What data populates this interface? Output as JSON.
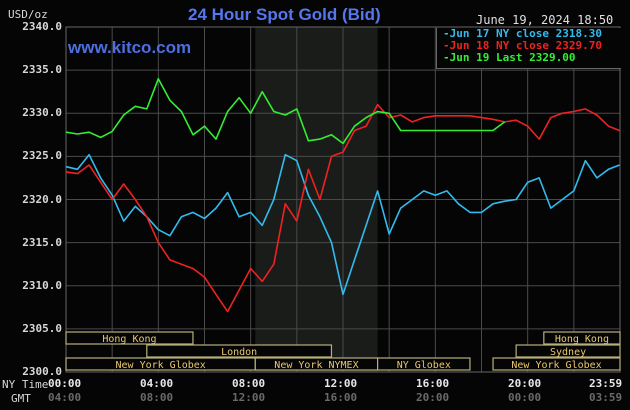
{
  "header": {
    "title": "24 Hour Spot Gold (Bid)",
    "unit": "USD/oz",
    "datetime": "June 19, 2024 18:50",
    "website": "www.kitco.com"
  },
  "legend": [
    {
      "label": "Jun 17 NY close 2318.30",
      "color": "#33bbee"
    },
    {
      "label": "Jun 18 NY close 2329.70",
      "color": "#ee2222"
    },
    {
      "label": "Jun 19 Last 2329.00",
      "color": "#33ee33"
    }
  ],
  "axis": {
    "y_ticks": [
      "2340.0",
      "2335.0",
      "2330.0",
      "2325.0",
      "2320.0",
      "2315.0",
      "2310.0",
      "2305.0",
      "2300.0"
    ],
    "x_label_ny": "NY Time",
    "x_label_gmt": "GMT",
    "x_ticks_ny": [
      "00:00",
      "04:00",
      "08:00",
      "12:00",
      "16:00",
      "20:00",
      "23:59"
    ],
    "x_ticks_gmt": [
      "04:00",
      "08:00",
      "12:00",
      "16:00",
      "20:00",
      "00:00",
      "03:59"
    ]
  },
  "sessions": [
    {
      "label": "Hong Kong",
      "row": 0,
      "start": 0,
      "end": 5.5
    },
    {
      "label": "London",
      "row": 1,
      "start": 3.5,
      "end": 11.5
    },
    {
      "label": "New York Globex",
      "row": 2,
      "start": 0,
      "end": 8.2
    },
    {
      "label": "New York NYMEX",
      "row": 2,
      "start": 8.2,
      "end": 13.5
    },
    {
      "label": "NY Globex",
      "row": 2,
      "start": 13.5,
      "end": 17.5
    },
    {
      "label": "Hong Kong",
      "row": 0,
      "start": 20.7,
      "end": 24
    },
    {
      "label": "Sydney",
      "row": 1,
      "start": 19.5,
      "end": 24
    },
    {
      "label": "New York Globex",
      "row": 2,
      "start": 18.5,
      "end": 24
    }
  ],
  "chart_data": {
    "type": "line",
    "title": "24 Hour Spot Gold (Bid)",
    "xlabel": "NY Time",
    "ylabel": "USD/oz",
    "ylim": [
      2300,
      2340
    ],
    "xlim": [
      0,
      24
    ],
    "grid": true,
    "legend_position": "top-right",
    "shaded_region_hours": [
      8.2,
      13.5
    ],
    "x_hours": [
      0,
      0.5,
      1,
      1.5,
      2,
      2.5,
      3,
      3.5,
      4,
      4.5,
      5,
      5.5,
      6,
      6.5,
      7,
      7.5,
      8,
      8.5,
      9,
      9.5,
      10,
      10.5,
      11,
      11.5,
      12,
      12.5,
      13,
      13.5,
      14,
      14.5,
      15,
      15.5,
      16,
      16.5,
      17,
      17.5,
      18,
      18.5,
      19,
      19.5,
      20,
      20.5,
      21,
      21.5,
      22,
      22.5,
      23,
      23.5,
      23.98
    ],
    "series": [
      {
        "name": "Jun 17 NY close 2318.30",
        "color": "#33bbee",
        "values": [
          2323.8,
          2323.5,
          2325.2,
          2322.5,
          2320.5,
          2317.5,
          2319.2,
          2318.0,
          2316.5,
          2315.8,
          2318.0,
          2318.5,
          2317.8,
          2319.0,
          2320.8,
          2318.0,
          2318.5,
          2317.0,
          2320.0,
          2325.2,
          2324.5,
          2320.5,
          2318.0,
          2315.0,
          2309.0,
          2313.0,
          2317.0,
          2321.0,
          2316.0,
          2319.0,
          2320.0,
          2321.0,
          2320.5,
          2321.0,
          2319.5,
          2318.5,
          2318.5,
          2319.5,
          2319.8,
          2320.0,
          2322.0,
          2322.5,
          2319.0,
          2320.0,
          2321.0,
          2324.5,
          2322.5,
          2323.5,
          2324.0
        ]
      },
      {
        "name": "Jun 18 NY close 2329.70",
        "color": "#ee2222",
        "values": [
          2323.2,
          2323.0,
          2324.0,
          2322.0,
          2320.0,
          2321.8,
          2320.0,
          2318.0,
          2315.0,
          2313.0,
          2312.5,
          2312.0,
          2311.0,
          2309.0,
          2307.0,
          2309.5,
          2312.0,
          2310.5,
          2312.5,
          2319.5,
          2317.5,
          2323.5,
          2320.0,
          2325.0,
          2325.5,
          2328.0,
          2328.5,
          2331.0,
          2329.5,
          2329.8,
          2329.0,
          2329.5,
          2329.7,
          2329.7,
          2329.7,
          2329.7,
          2329.5,
          2329.3,
          2329.0,
          2329.2,
          2328.5,
          2327.0,
          2329.5,
          2330.0,
          2330.2,
          2330.5,
          2329.8,
          2328.5,
          2328.0
        ]
      },
      {
        "name": "Jun 19 Last 2329.00",
        "color": "#33ee33",
        "values": [
          2327.8,
          2327.6,
          2327.8,
          2327.2,
          2327.9,
          2329.8,
          2330.8,
          2330.5,
          2334.0,
          2331.5,
          2330.2,
          2327.5,
          2328.5,
          2327.0,
          2330.2,
          2331.8,
          2330.0,
          2332.5,
          2330.2,
          2329.8,
          2330.5,
          2326.8,
          2327.0,
          2327.5,
          2326.5,
          2328.5,
          2329.5,
          2330.2,
          2330.0,
          2328.0,
          2328.0,
          2328.0,
          2328.0,
          2328.0,
          2328.0,
          2328.0,
          2328.0,
          2328.0,
          2329.0,
          null,
          null,
          null,
          null,
          null,
          null,
          null,
          null,
          null,
          null
        ]
      }
    ]
  }
}
